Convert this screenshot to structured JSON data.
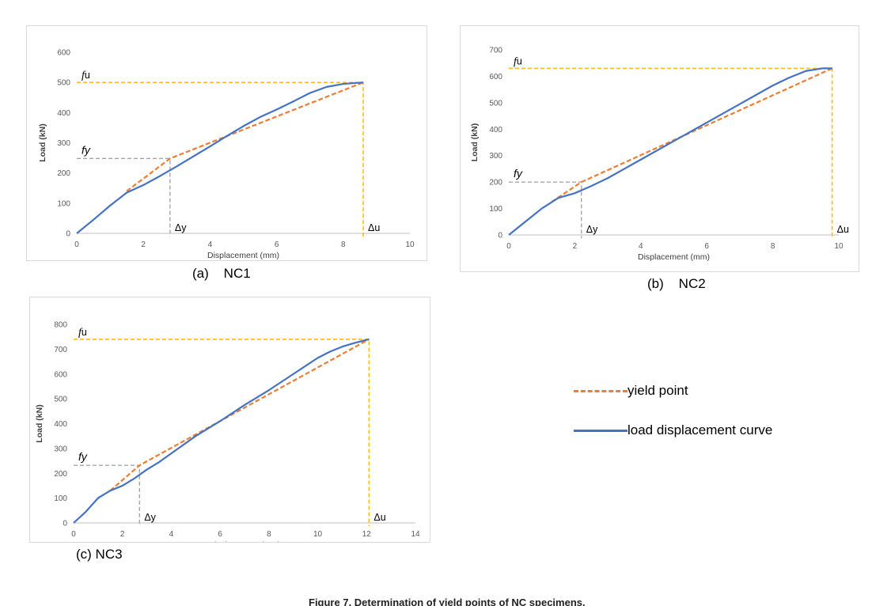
{
  "chart_data": [
    {
      "type": "line",
      "panel": "a",
      "caption": "(a)    NC1",
      "xlabel": "Displacement (mm)",
      "ylabel": "Load (kN)",
      "xlim": [
        0,
        10
      ],
      "ylim": [
        0,
        600
      ],
      "xticks": [
        0,
        2,
        4,
        6,
        8,
        10
      ],
      "yticks": [
        0,
        100,
        200,
        300,
        400,
        500,
        600
      ],
      "grid": false,
      "fu_label": "fu",
      "fy_label": "fy",
      "dy_label": "Δy",
      "du_label": "Δu",
      "yield_point": {
        "x": 2.8,
        "y": 248
      },
      "ultimate_point": {
        "x": 8.6,
        "y": 500
      },
      "series": [
        {
          "name": "yield point",
          "style": "dashed",
          "color": "#ED7D31",
          "x": [
            1.5,
            2.8,
            8.6
          ],
          "y": [
            140,
            248,
            500
          ]
        },
        {
          "name": "load displacement curve",
          "style": "solid",
          "color": "#4472C4",
          "x": [
            0,
            0.5,
            1.0,
            1.5,
            2.0,
            2.5,
            3.0,
            3.5,
            4.0,
            4.5,
            5.0,
            5.5,
            6.0,
            6.5,
            7.0,
            7.5,
            8.0,
            8.6
          ],
          "y": [
            0,
            45,
            92,
            135,
            160,
            190,
            222,
            255,
            288,
            322,
            355,
            385,
            410,
            437,
            465,
            485,
            495,
            500
          ]
        }
      ]
    },
    {
      "type": "line",
      "panel": "b",
      "caption": "(b)    NC2",
      "xlabel": "Displacement (mm)",
      "ylabel": "Load (kN)",
      "xlim": [
        0,
        10
      ],
      "ylim": [
        0,
        700
      ],
      "xticks": [
        0,
        2,
        4,
        6,
        8,
        10
      ],
      "yticks": [
        0,
        100,
        200,
        300,
        400,
        500,
        600,
        700
      ],
      "grid": false,
      "fu_label": "fu",
      "fy_label": "fy",
      "dy_label": "Δy",
      "du_label": "Δu",
      "yield_point": {
        "x": 2.2,
        "y": 200
      },
      "ultimate_point": {
        "x": 9.8,
        "y": 630
      },
      "series": [
        {
          "name": "yield point",
          "style": "dashed",
          "color": "#ED7D31",
          "x": [
            1.3,
            2.2,
            9.8
          ],
          "y": [
            125,
            200,
            630
          ]
        },
        {
          "name": "load displacement curve",
          "style": "solid",
          "color": "#4472C4",
          "x": [
            0,
            0.5,
            1.0,
            1.5,
            2.0,
            2.5,
            3.0,
            3.5,
            4.0,
            5.0,
            6.0,
            7.0,
            8.0,
            8.5,
            9.0,
            9.5,
            9.8
          ],
          "y": [
            0,
            50,
            100,
            140,
            158,
            185,
            215,
            250,
            285,
            355,
            425,
            495,
            565,
            595,
            620,
            630,
            630
          ]
        }
      ]
    },
    {
      "type": "line",
      "panel": "c",
      "caption": "(c) NC3",
      "xlabel": "Displacement (mm)",
      "ylabel": "Load (kN)",
      "xlim": [
        0,
        14
      ],
      "ylim": [
        0,
        800
      ],
      "xticks": [
        0,
        2,
        4,
        6,
        8,
        10,
        12,
        14
      ],
      "yticks": [
        0,
        100,
        200,
        300,
        400,
        500,
        600,
        700,
        800
      ],
      "grid": false,
      "fu_label": "fu",
      "fy_label": "fy",
      "dy_label": "Δy",
      "du_label": "Δu",
      "yield_point": {
        "x": 2.7,
        "y": 232
      },
      "ultimate_point": {
        "x": 12.1,
        "y": 740
      },
      "series": [
        {
          "name": "yield point",
          "style": "dashed",
          "color": "#ED7D31",
          "x": [
            1.5,
            2.7,
            12.1
          ],
          "y": [
            130,
            232,
            740
          ]
        },
        {
          "name": "load displacement curve",
          "style": "solid",
          "color": "#4472C4",
          "x": [
            0,
            0.5,
            1.0,
            1.5,
            2.0,
            2.5,
            3.0,
            3.5,
            4.0,
            5.0,
            6.0,
            7.0,
            8.0,
            9.0,
            10.0,
            10.5,
            11.0,
            11.5,
            12.1
          ],
          "y": [
            0,
            45,
            100,
            130,
            150,
            180,
            215,
            245,
            280,
            350,
            410,
            475,
            535,
            600,
            665,
            690,
            710,
            725,
            740
          ]
        }
      ]
    }
  ],
  "legend": {
    "items": [
      {
        "label": "yield point",
        "style": "dashed",
        "color": "#ED7D31"
      },
      {
        "label": "load displacement curve",
        "style": "solid",
        "color": "#4472C4"
      }
    ]
  },
  "figure_caption": "Figure 7. Determination of yield points of NC specimens."
}
